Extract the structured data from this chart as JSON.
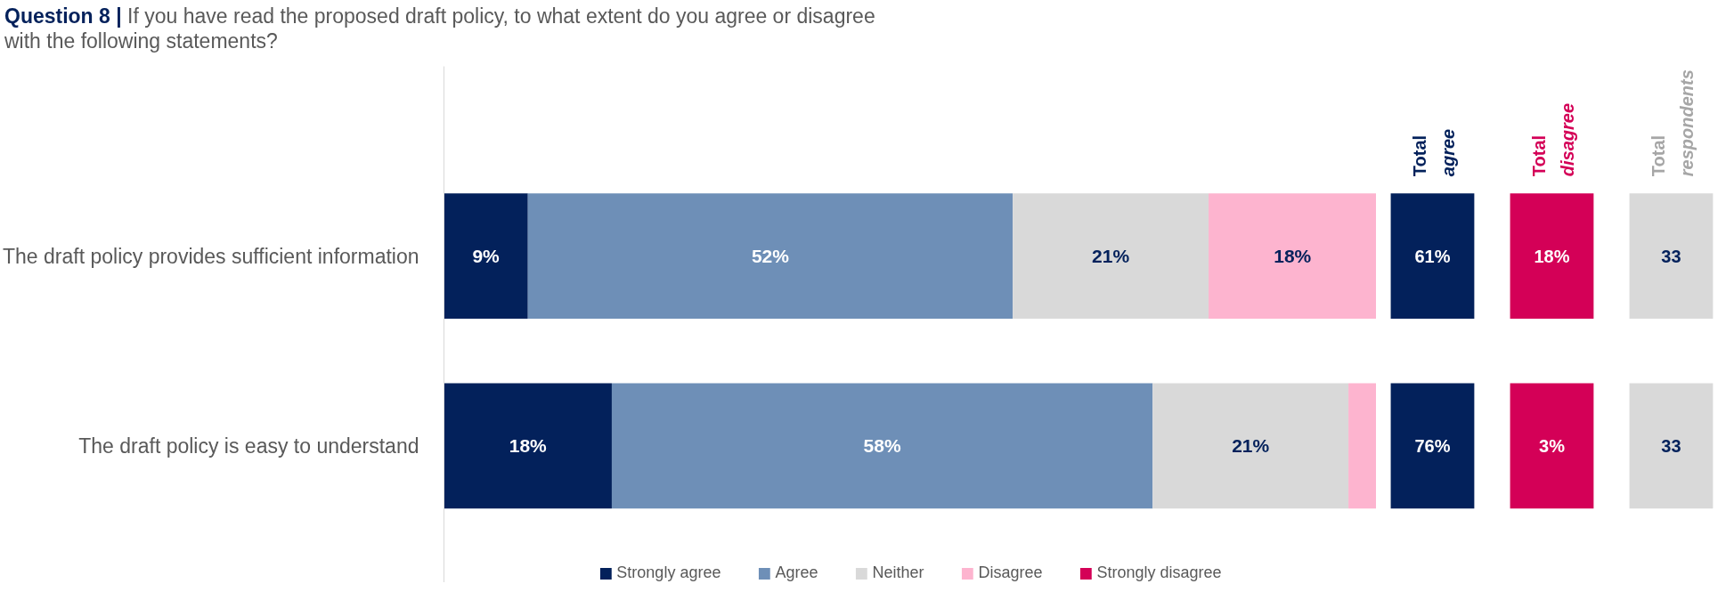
{
  "chart_data": [
    {
      "type": "bar",
      "orientation": "horizontal",
      "stacked": true,
      "title": "Question 8 | If you have read the proposed draft policy, to what extent do you agree or disagree with the following statements?",
      "categories": [
        "The draft policy provides sufficient information",
        "The draft policy is easy to understand"
      ],
      "legend": "bottom",
      "series": [
        {
          "name": "Strongly agree",
          "color": "#03215b",
          "values": [
            9,
            18
          ],
          "value_labels": [
            "9%",
            "18%"
          ]
        },
        {
          "name": "Agree",
          "color": "#6e8fb7",
          "values": [
            52,
            58
          ],
          "value_labels": [
            "52%",
            "58%"
          ]
        },
        {
          "name": "Neither",
          "color": "#d9d9d9",
          "values": [
            21,
            21
          ],
          "value_labels": [
            "21%",
            "21%"
          ]
        },
        {
          "name": "Disagree",
          "color": "#fdb4cf",
          "values": [
            18,
            3
          ],
          "value_labels": [
            "18%",
            null
          ]
        },
        {
          "name": "Strongly disagree",
          "color": "#d40057",
          "values": [
            0,
            0
          ],
          "value_labels": [
            null,
            null
          ]
        }
      ]
    },
    {
      "type": "other",
      "title": "Total agree",
      "value_labels": [
        "61%",
        "76%"
      ],
      "color": "#03215b"
    },
    {
      "type": "other",
      "title": "Total disagree",
      "value_labels": [
        "18%",
        "3%"
      ],
      "color": "#d40057"
    },
    {
      "type": "other",
      "title": "Total respondents",
      "value_labels": [
        "33",
        "33"
      ],
      "color": "#d9d9d9"
    }
  ]
}
